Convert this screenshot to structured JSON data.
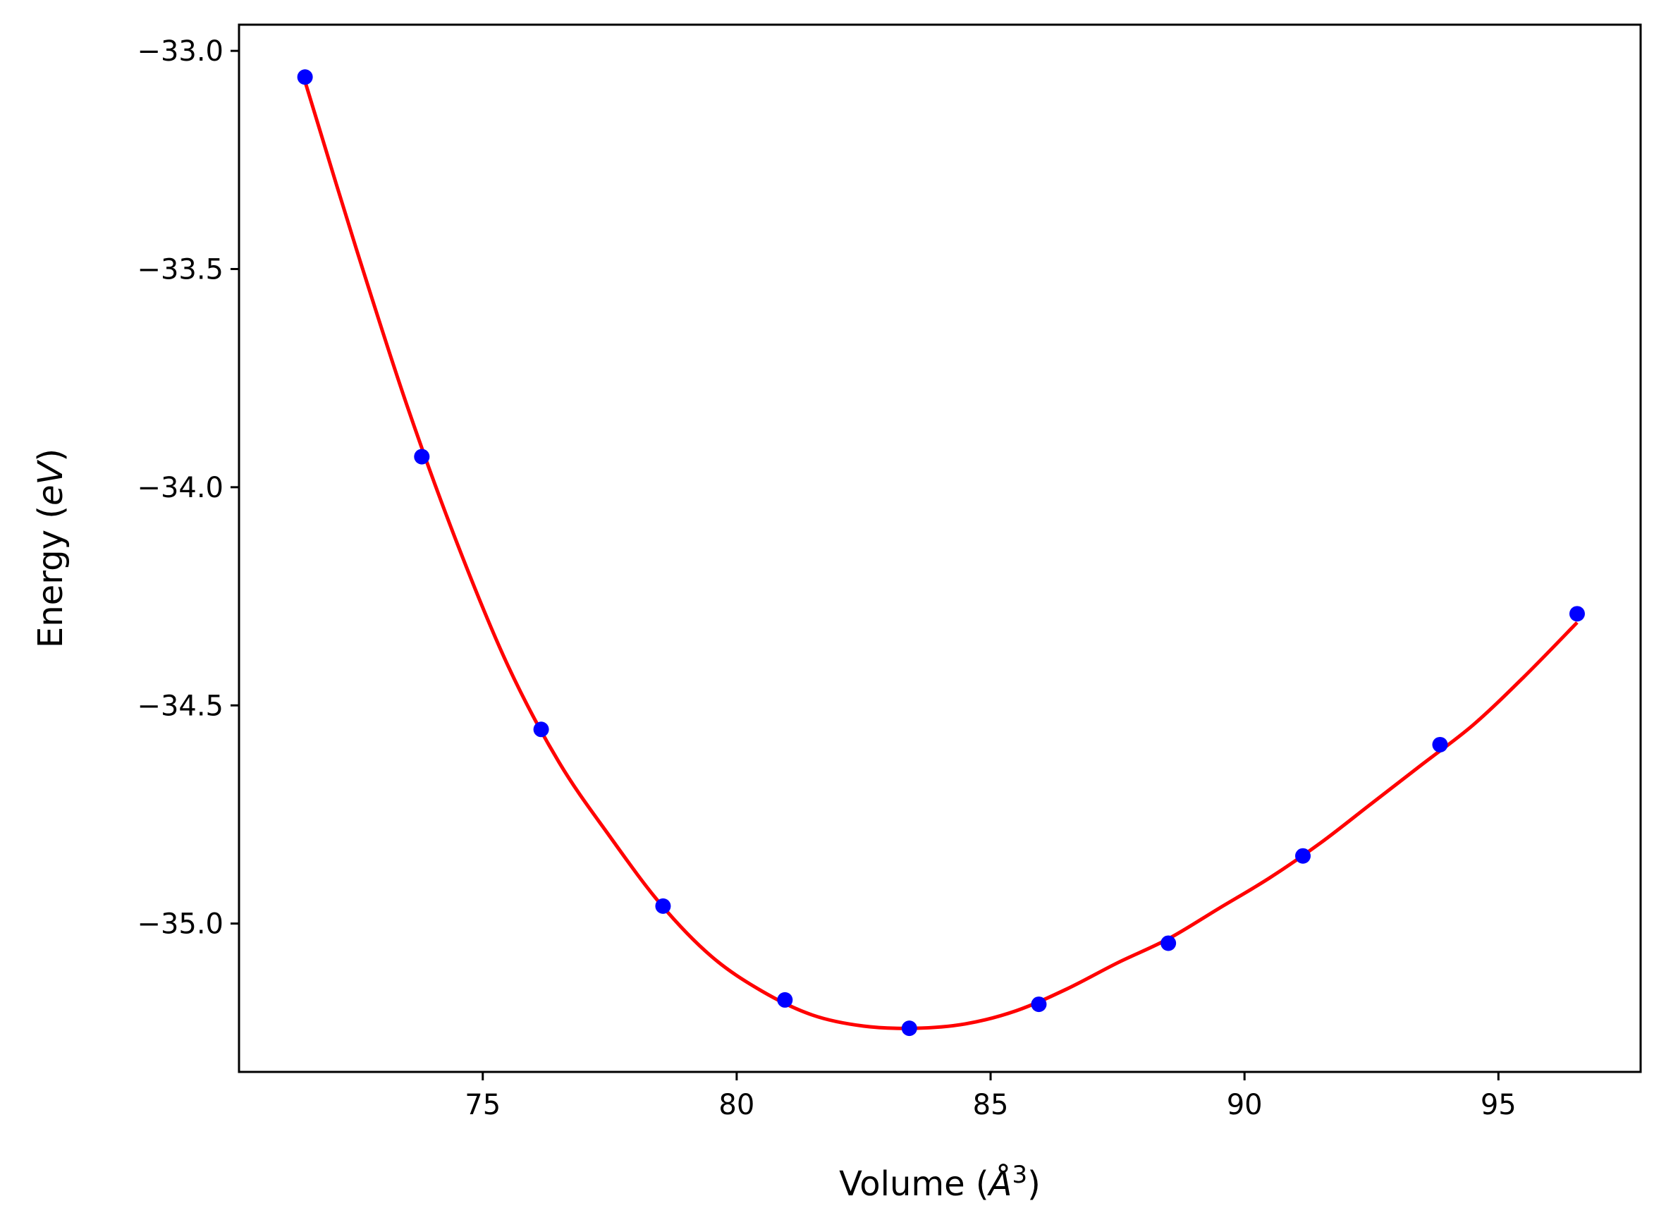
{
  "chart_data": {
    "type": "scatter",
    "title": "",
    "xlabel": "Volume",
    "xlabel_unit": "Å",
    "xlabel_unit_exponent": "3",
    "ylabel": "Energy",
    "ylabel_unit": "eV",
    "xlim": [
      70.2,
      97.8
    ],
    "ylim": [
      -35.34,
      -32.94
    ],
    "x_ticks": [
      75,
      80,
      85,
      90,
      95
    ],
    "x_tick_labels": [
      "75",
      "80",
      "85",
      "90",
      "95"
    ],
    "y_ticks": [
      -33.0,
      -33.5,
      -34.0,
      -34.5,
      -35.0
    ],
    "y_tick_labels": [
      "−33.0",
      "−33.5",
      "−34.0",
      "−34.5",
      "−35.0"
    ],
    "grid": false,
    "legend": "none",
    "series": [
      {
        "kind": "points",
        "color": "#0000ff",
        "x": [
          71.5,
          73.8,
          76.15,
          78.55,
          80.95,
          83.4,
          85.95,
          88.5,
          91.15,
          93.85,
          96.55
        ],
        "y": [
          -33.06,
          -33.93,
          -34.555,
          -34.96,
          -35.175,
          -35.24,
          -35.185,
          -35.045,
          -34.845,
          -34.59,
          -34.29
        ]
      },
      {
        "kind": "fit-curve",
        "color": "#ff0000",
        "x": [
          71.5,
          72.5,
          73.5,
          74.5,
          75.5,
          76.5,
          77.5,
          78.5,
          79.5,
          80.5,
          81.5,
          82.5,
          83.5,
          84.5,
          85.5,
          86.5,
          87.5,
          88.5,
          89.5,
          90.5,
          91.5,
          92.5,
          93.5,
          94.5,
          95.5,
          96.55
        ],
        "y": [
          -33.07,
          -33.45,
          -33.81,
          -34.13,
          -34.41,
          -34.63,
          -34.8,
          -34.955,
          -35.075,
          -35.155,
          -35.21,
          -35.235,
          -35.24,
          -35.23,
          -35.2,
          -35.15,
          -35.09,
          -35.035,
          -34.965,
          -34.895,
          -34.815,
          -34.725,
          -34.635,
          -34.545,
          -34.435,
          -34.31
        ]
      }
    ]
  }
}
